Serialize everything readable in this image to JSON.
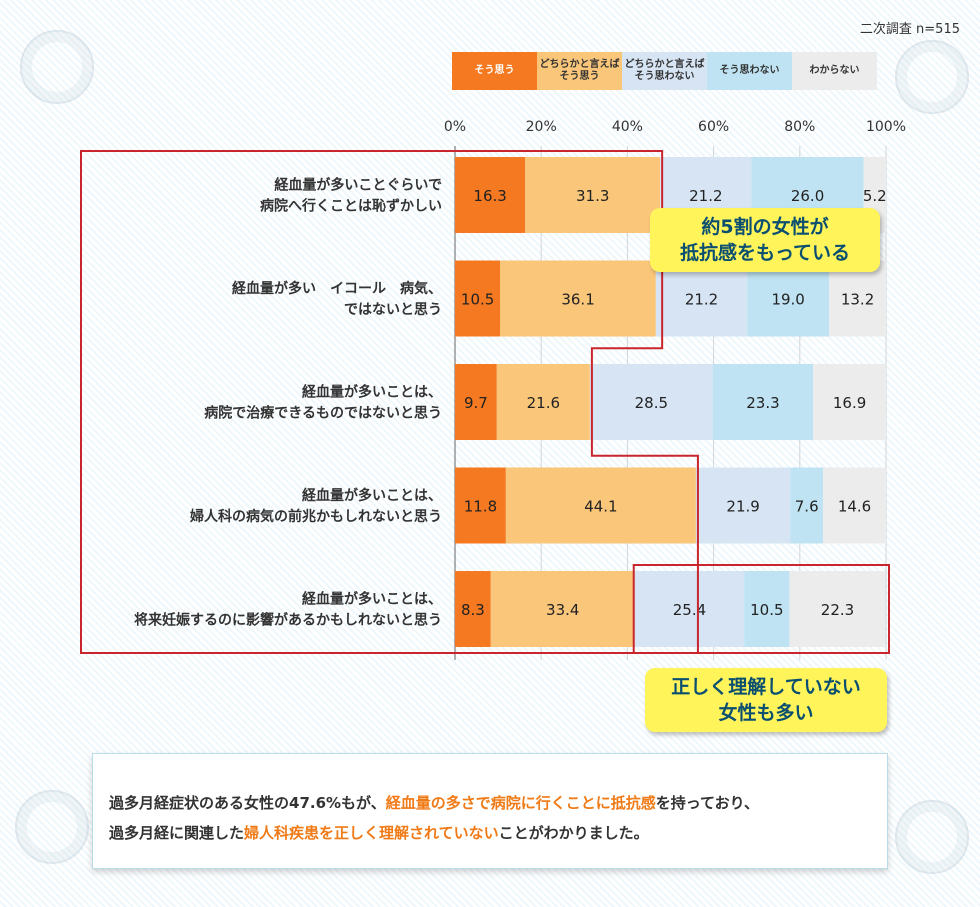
{
  "survey_label": "二次調査 n=515",
  "colors": {
    "series": [
      "#f47920",
      "#fac67a",
      "#d6e4f4",
      "#bfe3f2",
      "#ececec"
    ],
    "frame": "#c8262c",
    "callout_bg": "#fff45a",
    "callout_text": "#0a4f70",
    "highlight": "#f07a16"
  },
  "chart_data": {
    "type": "bar",
    "orientation": "horizontal-stacked-100",
    "x_ticks": [
      "0%",
      "20%",
      "40%",
      "60%",
      "80%",
      "100%"
    ],
    "xlim": [
      0,
      100
    ],
    "legend_placement": "top",
    "series": [
      {
        "name": "そう思う",
        "values": [
          16.3,
          10.5,
          9.7,
          11.8,
          8.3
        ]
      },
      {
        "name": "どちらかと言えば\nそう思う",
        "values": [
          31.3,
          36.1,
          21.6,
          44.1,
          33.4
        ]
      },
      {
        "name": "どちらかと言えば\nそう思わない",
        "values": [
          21.2,
          21.2,
          28.5,
          21.9,
          25.4
        ]
      },
      {
        "name": "そう思わない",
        "values": [
          26.0,
          19.0,
          23.3,
          7.6,
          10.5
        ]
      },
      {
        "name": "わからない",
        "values": [
          5.2,
          13.2,
          16.9,
          14.6,
          22.3
        ]
      }
    ],
    "categories": [
      "経血量が多いことぐらいで\n病院へ行くことは恥ずかしい",
      "経血量が多い　イコール　病気、\nではないと思う",
      "経血量が多いことは、\n病院で治療できるものではないと思う",
      "経血量が多いことは、\n婦人科の病気の前兆かもしれないと思う",
      "経血量が多いことは、\n将来妊娠するのに影響があるかもしれないと思う"
    ]
  },
  "callouts": {
    "top": "約5割の女性が\n抵抗感をもっている",
    "bottom": "正しく理解していない\n女性も多い"
  },
  "summary": {
    "l1_a": "過多月経症状のある女性の47.6%もが、",
    "l1_hl": "経血量の多さで病院に行くことに抵抗感",
    "l1_b": "を持っており、",
    "l2_a": "過多月経に関連した",
    "l2_hl": "婦人科疾患を正しく理解されていない",
    "l2_b": "ことがわかりました。"
  }
}
